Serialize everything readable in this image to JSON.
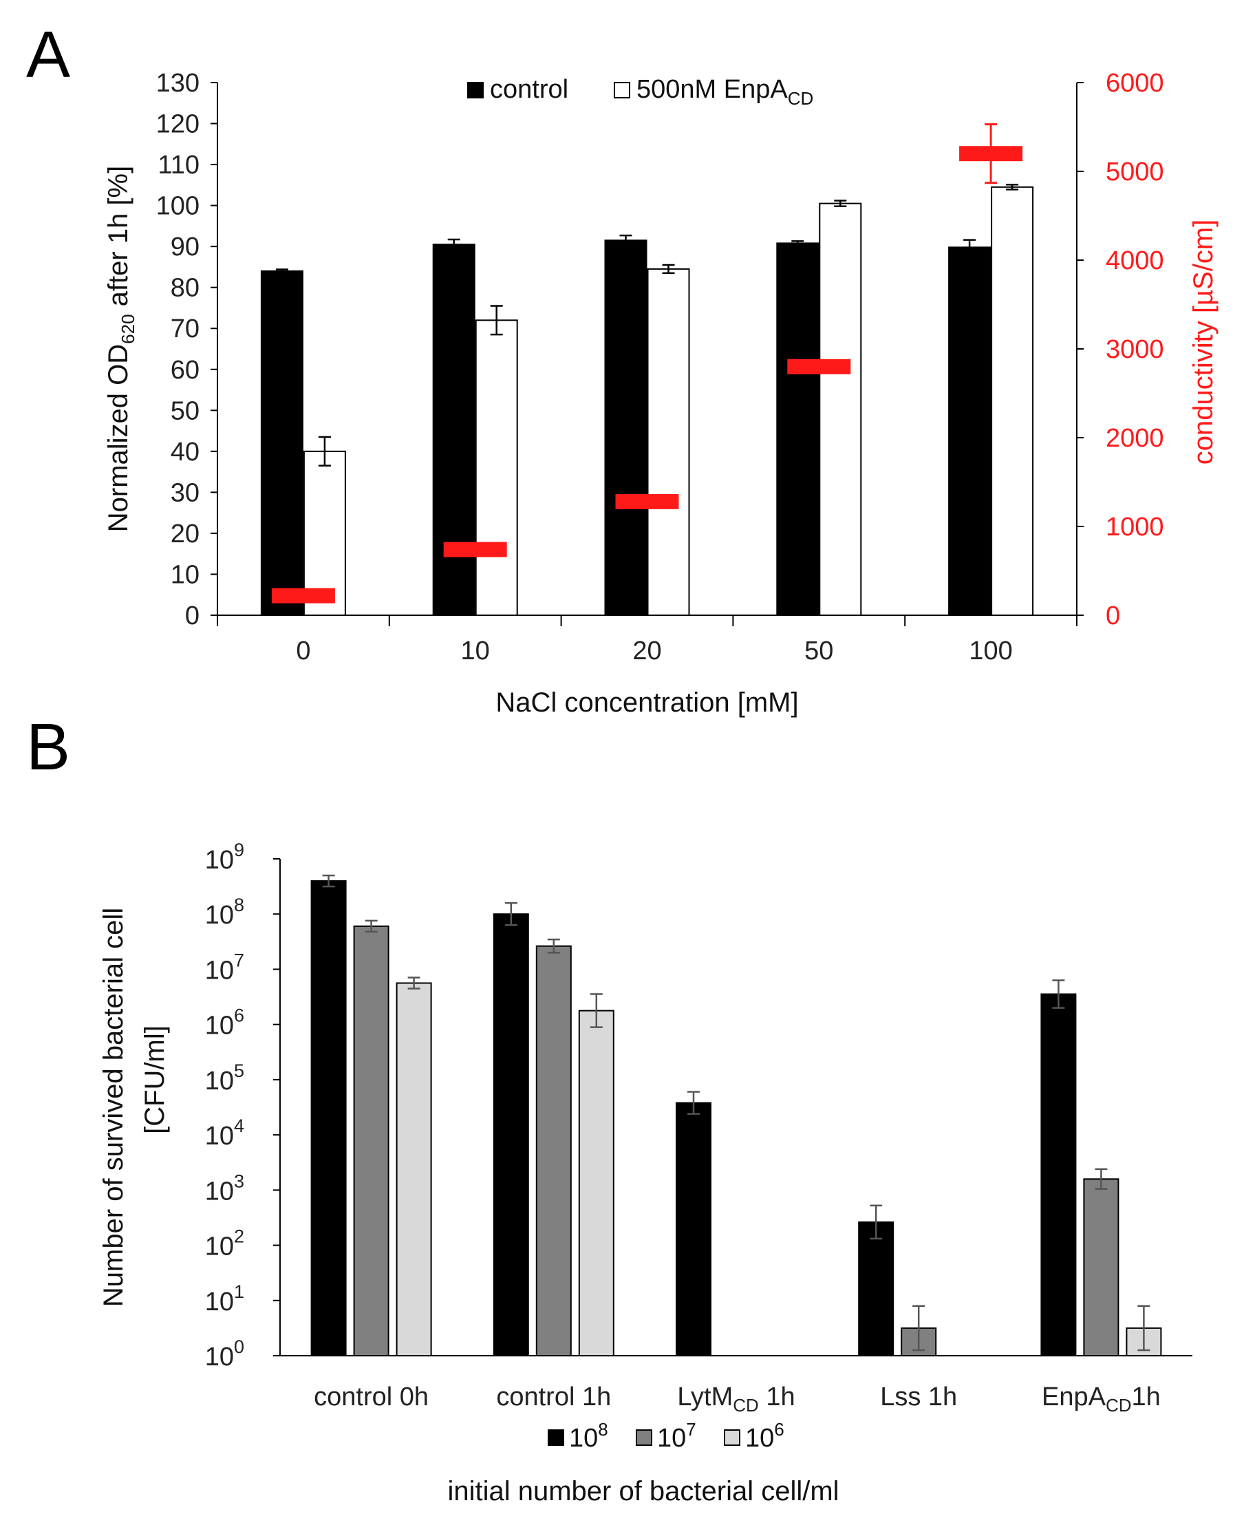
{
  "panel_labels": [
    "A",
    "B"
  ],
  "chart_data": [
    {
      "panel": "A",
      "type": "bar",
      "categories": [
        "0",
        "10",
        "20",
        "50",
        "100"
      ],
      "xlabel": "NaCl concentration [mM]",
      "ylabel": {
        "prefix": "Normalized OD",
        "sub": "620",
        "suffix": " after 1h [%]"
      },
      "y2label": "conductivity [µS/cm]",
      "ylim": [
        0,
        130
      ],
      "yticks": [
        0,
        10,
        20,
        30,
        40,
        50,
        60,
        70,
        80,
        90,
        100,
        110,
        120,
        130
      ],
      "y2lim": [
        0,
        6000
      ],
      "y2ticks": [
        0,
        1000,
        2000,
        3000,
        4000,
        5000,
        6000
      ],
      "series": [
        {
          "name": "control",
          "label": "control",
          "color": "#000000",
          "values": [
            84,
            90.5,
            91.5,
            90.8,
            89.8
          ],
          "errors": [
            0.4,
            1.2,
            1.2,
            0.5,
            1.8
          ]
        },
        {
          "name": "500nM EnpACD",
          "label_main": "500nM EnpA",
          "label_sub": "CD",
          "color": "#ffffff",
          "values": [
            40,
            72,
            84.5,
            100.5,
            104.5
          ],
          "errors": [
            3.5,
            3.5,
            1.0,
            0.7,
            0.6
          ]
        }
      ],
      "conductivity": {
        "color": "#ff1a1a",
        "values": [
          220,
          740,
          1280,
          2800,
          5200
        ],
        "errors": [
          0,
          0,
          0,
          0,
          330
        ]
      },
      "legend": "top"
    },
    {
      "panel": "B",
      "type": "bar",
      "scale": "log",
      "categories": [
        "control 0h",
        "control 1h",
        "LytMCD 1h",
        "Lss 1h",
        "EnpACD1h"
      ],
      "category_labels": [
        {
          "main": "control 0h",
          "sub": "",
          "tail": ""
        },
        {
          "main": "control 1h",
          "sub": "",
          "tail": ""
        },
        {
          "main": "LytM",
          "sub": "CD",
          "tail": " 1h"
        },
        {
          "main": "Lss 1h",
          "sub": "",
          "tail": ""
        },
        {
          "main": "EnpA",
          "sub": "CD",
          "tail": "1h"
        }
      ],
      "ylabel_line1": "Number of survived  bacterial cell",
      "ylabel_line2": "[CFU/ml]",
      "xlabel": "initial number of bacterial cell/ml",
      "ylim_exp": [
        0,
        9
      ],
      "ytick_base": "10",
      "ytick_exponents": [
        "0",
        "1",
        "2",
        "3",
        "4",
        "5",
        "6",
        "7",
        "8",
        "9"
      ],
      "series": [
        {
          "name": "10^8",
          "base": "10",
          "exp": "8",
          "color": "#000000",
          "log_values": [
            8.6,
            8.0,
            4.58,
            2.42,
            6.55
          ],
          "log_err": [
            0.1,
            0.2,
            0.2,
            0.3,
            0.25
          ]
        },
        {
          "name": "10^7",
          "base": "10",
          "exp": "7",
          "color": "#808080",
          "log_values": [
            7.78,
            7.42,
            null,
            0.5,
            3.2
          ],
          "log_err": [
            0.1,
            0.12,
            null,
            0.4,
            0.18
          ]
        },
        {
          "name": "10^6",
          "base": "10",
          "exp": "6",
          "color": "#d9d9d9",
          "log_values": [
            6.75,
            6.25,
            null,
            null,
            0.5
          ],
          "log_err": [
            0.1,
            0.3,
            null,
            null,
            0.4
          ]
        }
      ],
      "legend": "bottom"
    }
  ]
}
